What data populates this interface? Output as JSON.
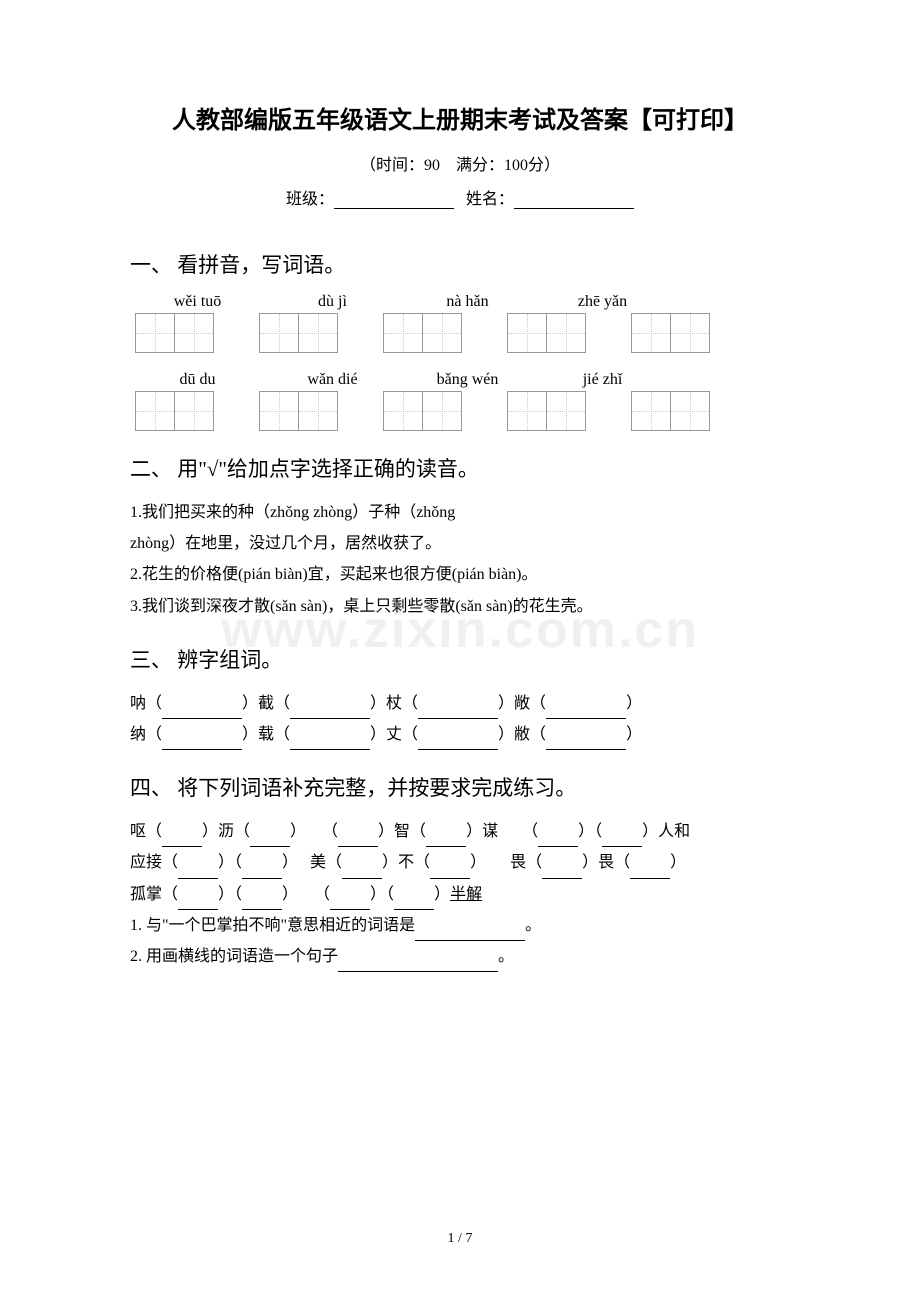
{
  "title": "人教部编版五年级语文上册期末考试及答案【可打印】",
  "subtitle": "（时间：90　满分：100分）",
  "class_label": "班级：",
  "name_label": "姓名：",
  "watermark": "www.zixin.com.cn",
  "section1": {
    "title": "一、 看拼音，写词语。",
    "row1": [
      "wěi tuō",
      "dù jì",
      "nà hǎn",
      "zhē yǎn"
    ],
    "row2": [
      "dū du",
      "wǎn dié",
      "bǎng wén",
      "jié zhǐ"
    ]
  },
  "section2": {
    "title": "二、 用\"√\"给加点字选择正确的读音。",
    "q1a": "1.我们把买来的种（zhǒng  zhòng）子种（zhǒng",
    "q1b": "zhòng）在地里，没过几个月，居然收获了。",
    "q2": "2.花生的价格便(pián  biàn)宜，买起来也很方便(pián  biàn)。",
    "q3": "3.我们谈到深夜才散(sǎn  sàn)，桌上只剩些零散(sǎn  sàn)的花生壳。"
  },
  "section3": {
    "title": "三、 辨字组词。",
    "row1": [
      "呐（",
      "）截（",
      "）杖（",
      "）敞（",
      "）"
    ],
    "row2": [
      "纳（",
      "）载（",
      "）丈（",
      "）敝（",
      "）"
    ]
  },
  "section4": {
    "title": "四、 将下列词语补充完整，并按要求完成练习。",
    "r1": {
      "a": "呕（",
      "b": "）沥（",
      "c": "）　　（",
      "d": "）智（",
      "e": "）谋　　（",
      "f": "）（",
      "g": "）人和"
    },
    "r2": {
      "a": "应接（",
      "b": "）（",
      "c": "）　 美（",
      "d": "）不（",
      "e": "）　　畏（",
      "f": "）畏（",
      "g": "）"
    },
    "r3": {
      "a": "孤掌（",
      "b": "）（",
      "c": "）　　（",
      "d": "）（",
      "e": "）",
      "half": "半解"
    },
    "q1a": "1. 与\"一个巴掌拍不响\"意思相近的词语是",
    "q1b": "。",
    "q2a": "2. 用画横线的词语造一个句子",
    "q2b": "。"
  },
  "page_num": "1 / 7"
}
